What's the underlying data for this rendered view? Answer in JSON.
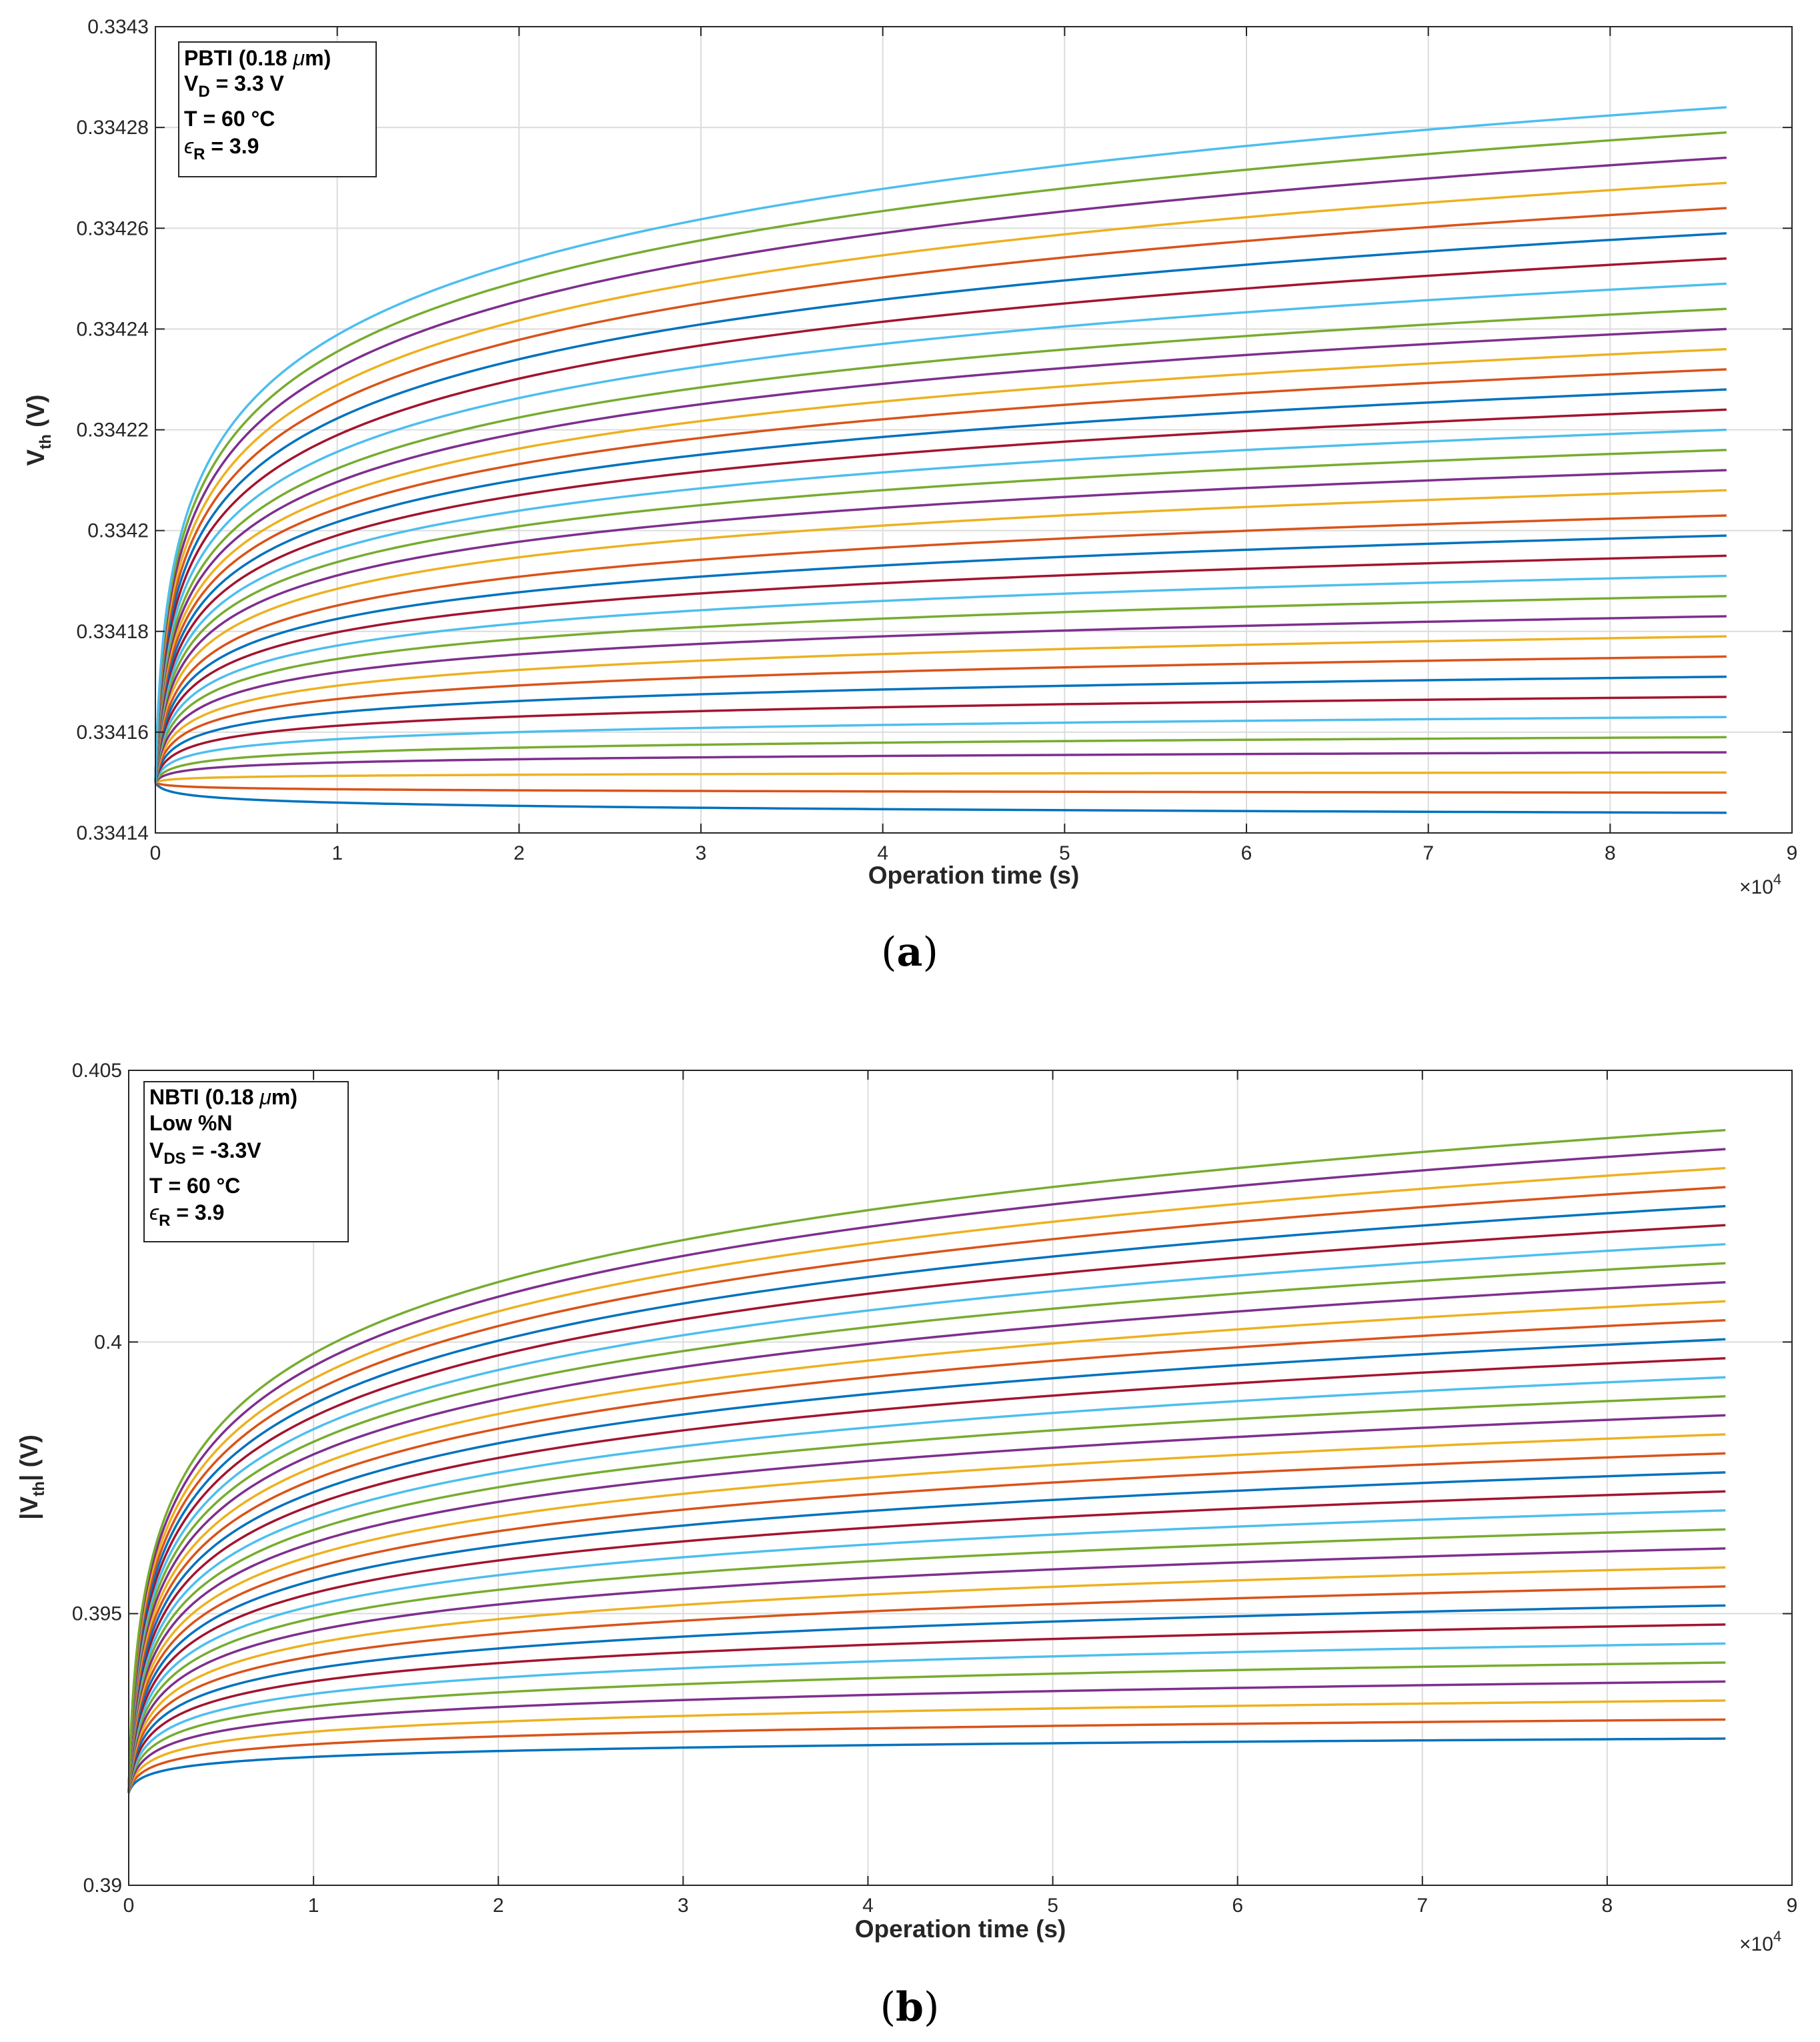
{
  "colors": {
    "series_cycle": [
      "#0072BD",
      "#D95319",
      "#EDB120",
      "#7E2F8E",
      "#77AC30",
      "#4DBEEE",
      "#A2142F"
    ],
    "axis": "#262626",
    "grid": "#dcdcdc"
  },
  "chart_data": [
    {
      "type": "line",
      "panel": "a",
      "caption_letter": "a",
      "xlabel": "Operation time (s)",
      "ylabel_main": "V",
      "ylabel_sub": "th",
      "ylabel_tail": " (V)",
      "x_exponent_base": "×10",
      "x_exponent_power": "4",
      "xlim": [
        0,
        9
      ],
      "ylim": [
        0.33414,
        0.3343
      ],
      "xticks": [
        0,
        1,
        2,
        3,
        4,
        5,
        6,
        7,
        8,
        9
      ],
      "xtick_labels": [
        "0",
        "1",
        "2",
        "3",
        "4",
        "5",
        "6",
        "7",
        "8",
        "9"
      ],
      "yticks": [
        0.33414,
        0.33416,
        0.33418,
        0.3342,
        0.33422,
        0.33424,
        0.33426,
        0.33428,
        0.3343
      ],
      "ytick_labels": [
        "0.33414",
        "0.33416",
        "0.33418",
        "0.3342",
        "0.33422",
        "0.33424",
        "0.33426",
        "0.33428",
        "0.3343"
      ],
      "grid": true,
      "annotation": {
        "location": "top-left",
        "lines": [
          {
            "main": "PBTI (0.18 ",
            "greek": "μ",
            "tail": "m)"
          },
          {
            "main": "V",
            "sub": "D",
            "tail": " = 3.3 V"
          },
          {
            "main": "T = 60 °C"
          },
          {
            "greek": "ϵ",
            "sub": "R",
            "tail": " = 3.9"
          }
        ]
      },
      "x_start": 0,
      "x_end": 8.64,
      "series": [
        {
          "name": "curve 1",
          "start": 0.33415,
          "end": 0.334144,
          "curve": "log"
        },
        {
          "name": "curve 2",
          "start": 0.33415,
          "end": 0.334148,
          "curve": "log"
        },
        {
          "name": "curve 3",
          "start": 0.33415,
          "end": 0.334152,
          "curve": "log"
        },
        {
          "name": "curve 4",
          "start": 0.33415,
          "end": 0.334156,
          "curve": "log"
        },
        {
          "name": "curve 5",
          "start": 0.33415,
          "end": 0.334159,
          "curve": "log"
        },
        {
          "name": "curve 6",
          "start": 0.33415,
          "end": 0.334163,
          "curve": "log"
        },
        {
          "name": "curve 7",
          "start": 0.33415,
          "end": 0.334167,
          "curve": "log"
        },
        {
          "name": "curve 8",
          "start": 0.33415,
          "end": 0.334171,
          "curve": "log"
        },
        {
          "name": "curve 9",
          "start": 0.33415,
          "end": 0.334175,
          "curve": "log"
        },
        {
          "name": "curve 10",
          "start": 0.33415,
          "end": 0.334179,
          "curve": "log"
        },
        {
          "name": "curve 11",
          "start": 0.33415,
          "end": 0.334183,
          "curve": "log"
        },
        {
          "name": "curve 12",
          "start": 0.33415,
          "end": 0.334187,
          "curve": "log"
        },
        {
          "name": "curve 13",
          "start": 0.33415,
          "end": 0.334191,
          "curve": "log"
        },
        {
          "name": "curve 14",
          "start": 0.33415,
          "end": 0.334195,
          "curve": "log"
        },
        {
          "name": "curve 15",
          "start": 0.33415,
          "end": 0.334199,
          "curve": "log"
        },
        {
          "name": "curve 16",
          "start": 0.33415,
          "end": 0.334203,
          "curve": "log"
        },
        {
          "name": "curve 17",
          "start": 0.33415,
          "end": 0.334208,
          "curve": "log"
        },
        {
          "name": "curve 18",
          "start": 0.33415,
          "end": 0.334212,
          "curve": "log"
        },
        {
          "name": "curve 19",
          "start": 0.33415,
          "end": 0.334216,
          "curve": "log"
        },
        {
          "name": "curve 20",
          "start": 0.33415,
          "end": 0.33422,
          "curve": "log"
        },
        {
          "name": "curve 21",
          "start": 0.33415,
          "end": 0.334224,
          "curve": "log"
        },
        {
          "name": "curve 22",
          "start": 0.33415,
          "end": 0.334228,
          "curve": "log"
        },
        {
          "name": "curve 23",
          "start": 0.33415,
          "end": 0.334232,
          "curve": "log"
        },
        {
          "name": "curve 24",
          "start": 0.33415,
          "end": 0.334236,
          "curve": "log"
        },
        {
          "name": "curve 25",
          "start": 0.33415,
          "end": 0.33424,
          "curve": "log"
        },
        {
          "name": "curve 26",
          "start": 0.33415,
          "end": 0.334244,
          "curve": "log"
        },
        {
          "name": "curve 27",
          "start": 0.33415,
          "end": 0.334249,
          "curve": "log"
        },
        {
          "name": "curve 28",
          "start": 0.33415,
          "end": 0.334254,
          "curve": "log"
        },
        {
          "name": "curve 29",
          "start": 0.33415,
          "end": 0.334259,
          "curve": "log"
        },
        {
          "name": "curve 30",
          "start": 0.33415,
          "end": 0.334264,
          "curve": "log"
        },
        {
          "name": "curve 31",
          "start": 0.33415,
          "end": 0.334269,
          "curve": "log"
        },
        {
          "name": "curve 32",
          "start": 0.33415,
          "end": 0.334274,
          "curve": "log"
        },
        {
          "name": "curve 33",
          "start": 0.33415,
          "end": 0.334279,
          "curve": "log"
        },
        {
          "name": "curve 34",
          "start": 0.33415,
          "end": 0.334284,
          "curve": "log"
        }
      ]
    },
    {
      "type": "line",
      "panel": "b",
      "caption_letter": "b",
      "xlabel": "Operation time (s)",
      "ylabel_main": "|V",
      "ylabel_sub": "th",
      "ylabel_tail": "| (V)",
      "x_exponent_base": "×10",
      "x_exponent_power": "4",
      "xlim": [
        0,
        9
      ],
      "ylim": [
        0.39,
        0.405
      ],
      "xticks": [
        0,
        1,
        2,
        3,
        4,
        5,
        6,
        7,
        8,
        9
      ],
      "xtick_labels": [
        "0",
        "1",
        "2",
        "3",
        "4",
        "5",
        "6",
        "7",
        "8",
        "9"
      ],
      "yticks": [
        0.39,
        0.395,
        0.4,
        0.405
      ],
      "ytick_labels": [
        "0.39",
        "0.395",
        "0.4",
        "0.405"
      ],
      "grid": true,
      "annotation": {
        "location": "top-left",
        "lines": [
          {
            "main": "NBTI (0.18 ",
            "greek": "μ",
            "tail": "m)"
          },
          {
            "main": "Low %N"
          },
          {
            "main": "V",
            "sub": "DS",
            "tail": " = -3.3V"
          },
          {
            "main": "T = 60 °C"
          },
          {
            "greek": "ϵ",
            "sub": "R",
            "tail": " = 3.9"
          }
        ]
      },
      "x_start": 0,
      "x_end": 8.64,
      "series": [
        {
          "name": "curve 1",
          "start": 0.3917,
          "end": 0.3927,
          "curve": "log"
        },
        {
          "name": "curve 2",
          "start": 0.3917,
          "end": 0.39305,
          "curve": "log"
        },
        {
          "name": "curve 3",
          "start": 0.3917,
          "end": 0.3934,
          "curve": "log"
        },
        {
          "name": "curve 4",
          "start": 0.3917,
          "end": 0.39375,
          "curve": "log"
        },
        {
          "name": "curve 5",
          "start": 0.3917,
          "end": 0.3941,
          "curve": "log"
        },
        {
          "name": "curve 6",
          "start": 0.3917,
          "end": 0.39445,
          "curve": "log"
        },
        {
          "name": "curve 7",
          "start": 0.3917,
          "end": 0.3948,
          "curve": "log"
        },
        {
          "name": "curve 8",
          "start": 0.3917,
          "end": 0.39515,
          "curve": "log"
        },
        {
          "name": "curve 9",
          "start": 0.3917,
          "end": 0.3955,
          "curve": "log"
        },
        {
          "name": "curve 10",
          "start": 0.3917,
          "end": 0.39585,
          "curve": "log"
        },
        {
          "name": "curve 11",
          "start": 0.3917,
          "end": 0.3962,
          "curve": "log"
        },
        {
          "name": "curve 12",
          "start": 0.3917,
          "end": 0.39655,
          "curve": "log"
        },
        {
          "name": "curve 13",
          "start": 0.3917,
          "end": 0.3969,
          "curve": "log"
        },
        {
          "name": "curve 14",
          "start": 0.3917,
          "end": 0.39725,
          "curve": "log"
        },
        {
          "name": "curve 15",
          "start": 0.3917,
          "end": 0.3976,
          "curve": "log"
        },
        {
          "name": "curve 16",
          "start": 0.3917,
          "end": 0.39795,
          "curve": "log"
        },
        {
          "name": "curve 17",
          "start": 0.3917,
          "end": 0.3983,
          "curve": "log"
        },
        {
          "name": "curve 18",
          "start": 0.3917,
          "end": 0.39865,
          "curve": "log"
        },
        {
          "name": "curve 19",
          "start": 0.3917,
          "end": 0.399,
          "curve": "log"
        },
        {
          "name": "curve 20",
          "start": 0.3917,
          "end": 0.39935,
          "curve": "log"
        },
        {
          "name": "curve 21",
          "start": 0.3917,
          "end": 0.3997,
          "curve": "log"
        },
        {
          "name": "curve 22",
          "start": 0.3917,
          "end": 0.40005,
          "curve": "log"
        },
        {
          "name": "curve 23",
          "start": 0.3917,
          "end": 0.4004,
          "curve": "log"
        },
        {
          "name": "curve 24",
          "start": 0.3917,
          "end": 0.40075,
          "curve": "log"
        },
        {
          "name": "curve 25",
          "start": 0.3917,
          "end": 0.4011,
          "curve": "log"
        },
        {
          "name": "curve 26",
          "start": 0.3917,
          "end": 0.40145,
          "curve": "log"
        },
        {
          "name": "curve 27",
          "start": 0.3917,
          "end": 0.4018,
          "curve": "log"
        },
        {
          "name": "curve 28",
          "start": 0.3917,
          "end": 0.40215,
          "curve": "log"
        },
        {
          "name": "curve 29",
          "start": 0.3917,
          "end": 0.4025,
          "curve": "log"
        },
        {
          "name": "curve 30",
          "start": 0.3917,
          "end": 0.40285,
          "curve": "log"
        },
        {
          "name": "curve 31",
          "start": 0.3917,
          "end": 0.4032,
          "curve": "log"
        },
        {
          "name": "curve 32",
          "start": 0.3917,
          "end": 0.40355,
          "curve": "log"
        },
        {
          "name": "curve 33",
          "start": 0.3917,
          "end": 0.4039,
          "curve": "log"
        }
      ]
    }
  ]
}
